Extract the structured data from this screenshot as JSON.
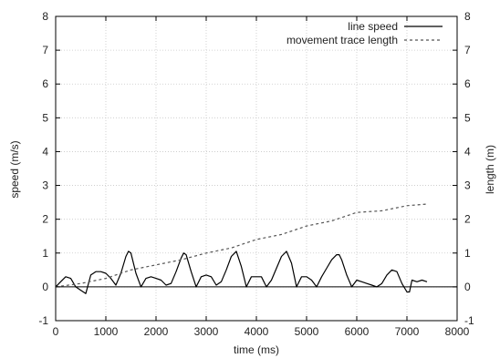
{
  "chart_data": {
    "type": "line",
    "title": "",
    "xlabel": "time (ms)",
    "ylabel": "speed (m/s)",
    "y2label": "length (m)",
    "xlim": [
      0,
      8000
    ],
    "ylim": [
      -1,
      8
    ],
    "y2lim": [
      -1,
      8
    ],
    "x_ticks": [
      0,
      1000,
      2000,
      3000,
      4000,
      5000,
      6000,
      7000,
      8000
    ],
    "y_ticks": [
      -1,
      0,
      1,
      2,
      3,
      4,
      5,
      6,
      7,
      8
    ],
    "y2_ticks": [
      -1,
      0,
      1,
      2,
      3,
      4,
      5,
      6,
      7,
      8
    ],
    "grid": true,
    "legend_position": "top-right",
    "series": [
      {
        "name": "line speed",
        "style": "solid",
        "color": "#000000",
        "axis": "left",
        "x": [
          0,
          100,
          200,
          300,
          400,
          500,
          600,
          700,
          800,
          900,
          1000,
          1100,
          1200,
          1300,
          1400,
          1450,
          1500,
          1600,
          1700,
          1800,
          1900,
          2000,
          2100,
          2200,
          2300,
          2400,
          2500,
          2550,
          2600,
          2700,
          2800,
          2900,
          3000,
          3100,
          3200,
          3300,
          3400,
          3500,
          3600,
          3700,
          3800,
          3900,
          4000,
          4100,
          4200,
          4300,
          4400,
          4500,
          4600,
          4700,
          4800,
          4900,
          5000,
          5100,
          5200,
          5300,
          5400,
          5500,
          5600,
          5650,
          5700,
          5800,
          5900,
          6000,
          6100,
          6200,
          6300,
          6400,
          6500,
          6600,
          6700,
          6800,
          6900,
          7000,
          7050,
          7100,
          7200,
          7300,
          7400
        ],
        "values": [
          0.0,
          0.15,
          0.3,
          0.25,
          0.0,
          -0.1,
          -0.2,
          0.35,
          0.45,
          0.45,
          0.4,
          0.25,
          0.05,
          0.4,
          0.9,
          1.05,
          1.0,
          0.4,
          0.0,
          0.25,
          0.3,
          0.25,
          0.2,
          0.05,
          0.1,
          0.45,
          0.85,
          1.0,
          0.95,
          0.45,
          0.0,
          0.3,
          0.35,
          0.3,
          0.05,
          0.15,
          0.5,
          0.9,
          1.05,
          0.6,
          0.0,
          0.3,
          0.3,
          0.3,
          0.0,
          0.2,
          0.55,
          0.9,
          1.05,
          0.7,
          0.0,
          0.3,
          0.3,
          0.2,
          0.0,
          0.3,
          0.55,
          0.8,
          0.95,
          0.95,
          0.8,
          0.35,
          0.0,
          0.2,
          0.15,
          0.1,
          0.05,
          0.0,
          0.1,
          0.35,
          0.5,
          0.45,
          0.1,
          -0.15,
          -0.15,
          0.2,
          0.15,
          0.2,
          0.15
        ]
      },
      {
        "name": "movement trace length",
        "style": "dashed",
        "color": "#555555",
        "axis": "right",
        "x": [
          0,
          500,
          1000,
          1500,
          2000,
          2500,
          3000,
          3500,
          4000,
          4500,
          5000,
          5500,
          6000,
          6500,
          7000,
          7400
        ],
        "values": [
          0.0,
          0.1,
          0.25,
          0.5,
          0.65,
          0.8,
          1.0,
          1.15,
          1.4,
          1.55,
          1.8,
          1.95,
          2.2,
          2.25,
          2.4,
          2.45
        ]
      }
    ]
  }
}
